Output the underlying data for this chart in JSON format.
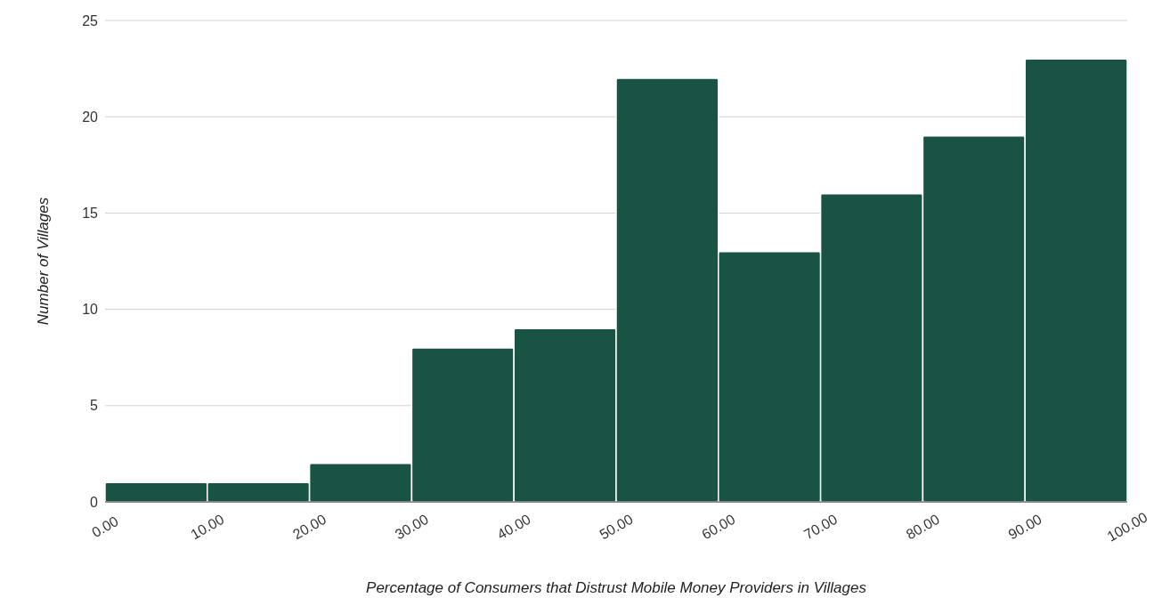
{
  "chart_data": {
    "type": "histogram",
    "xlabel": "Percentage of Consumers that Distrust Mobile Money Providers in Villages",
    "ylabel": "Number of Villages",
    "bins": [
      0,
      10,
      20,
      30,
      40,
      50,
      60,
      70,
      80,
      90,
      100
    ],
    "values": [
      1,
      1,
      2,
      8,
      9,
      22,
      13,
      16,
      19,
      23
    ],
    "color": "#195343",
    "xlim": [
      0,
      100
    ],
    "xticks": [
      {
        "value": 0,
        "label": "0.00"
      },
      {
        "value": 10,
        "label": "10.00"
      },
      {
        "value": 20,
        "label": "20.00"
      },
      {
        "value": 30,
        "label": "30.00"
      },
      {
        "value": 40,
        "label": "40.00"
      },
      {
        "value": 50,
        "label": "50.00"
      },
      {
        "value": 60,
        "label": "60.00"
      },
      {
        "value": 70,
        "label": "70.00"
      },
      {
        "value": 80,
        "label": "80.00"
      },
      {
        "value": 90,
        "label": "90.00"
      },
      {
        "value": 100,
        "label": "100.00"
      }
    ],
    "ylim": [
      0,
      25
    ],
    "yticks": [
      0,
      5,
      10,
      15,
      20,
      25
    ],
    "grid": "y",
    "legend": false
  }
}
